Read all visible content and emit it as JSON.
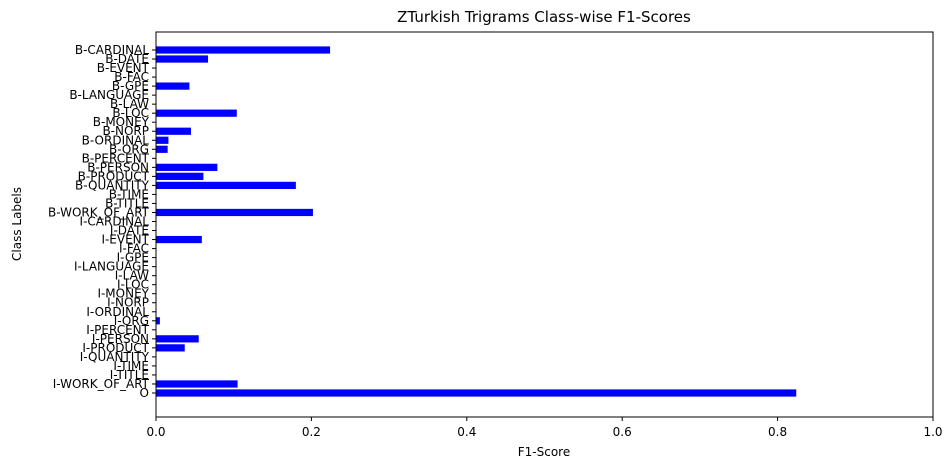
{
  "chart_data": {
    "type": "bar",
    "orientation": "horizontal",
    "title": "ZTurkish Trigrams Class-wise F1-Scores",
    "xlabel": "F1-Score",
    "ylabel": "Class Labels",
    "xlim": [
      0,
      1
    ],
    "xticks": [
      "0.0",
      "0.2",
      "0.4",
      "0.6",
      "0.8",
      "1.0"
    ],
    "grid": false,
    "legend": "none",
    "bar_color": "#0000ff",
    "categories": [
      "B-CARDINAL",
      "B-DATE",
      "B-EVENT",
      "B-FAC",
      "B-GPE",
      "B-LANGUAGE",
      "B-LAW",
      "B-LOC",
      "B-MONEY",
      "B-NORP",
      "B-ORDINAL",
      "B-ORG",
      "B-PERCENT",
      "B-PERSON",
      "B-PRODUCT",
      "B-QUANTITY",
      "B-TIME",
      "B-TITLE",
      "B-WORK_OF_ART",
      "I-CARDINAL",
      "I-DATE",
      "I-EVENT",
      "I-FAC",
      "I-GPE",
      "I-LANGUAGE",
      "I-LAW",
      "I-LOC",
      "I-MONEY",
      "I-NORP",
      "I-ORDINAL",
      "I-ORG",
      "I-PERCENT",
      "I-PERSON",
      "I-PRODUCT",
      "I-QUANTITY",
      "I-TIME",
      "I-TITLE",
      "I-WORK_OF_ART",
      "O"
    ],
    "values": [
      0.224,
      0.067,
      0,
      0,
      0.043,
      0,
      0,
      0.104,
      0,
      0.045,
      0.016,
      0.015,
      0,
      0.079,
      0.061,
      0.18,
      0,
      0,
      0.202,
      0,
      0,
      0.059,
      0,
      0,
      0,
      0,
      0,
      0,
      0,
      0,
      0.005,
      0,
      0.055,
      0.037,
      0,
      0,
      0,
      0.105,
      0.824
    ]
  }
}
